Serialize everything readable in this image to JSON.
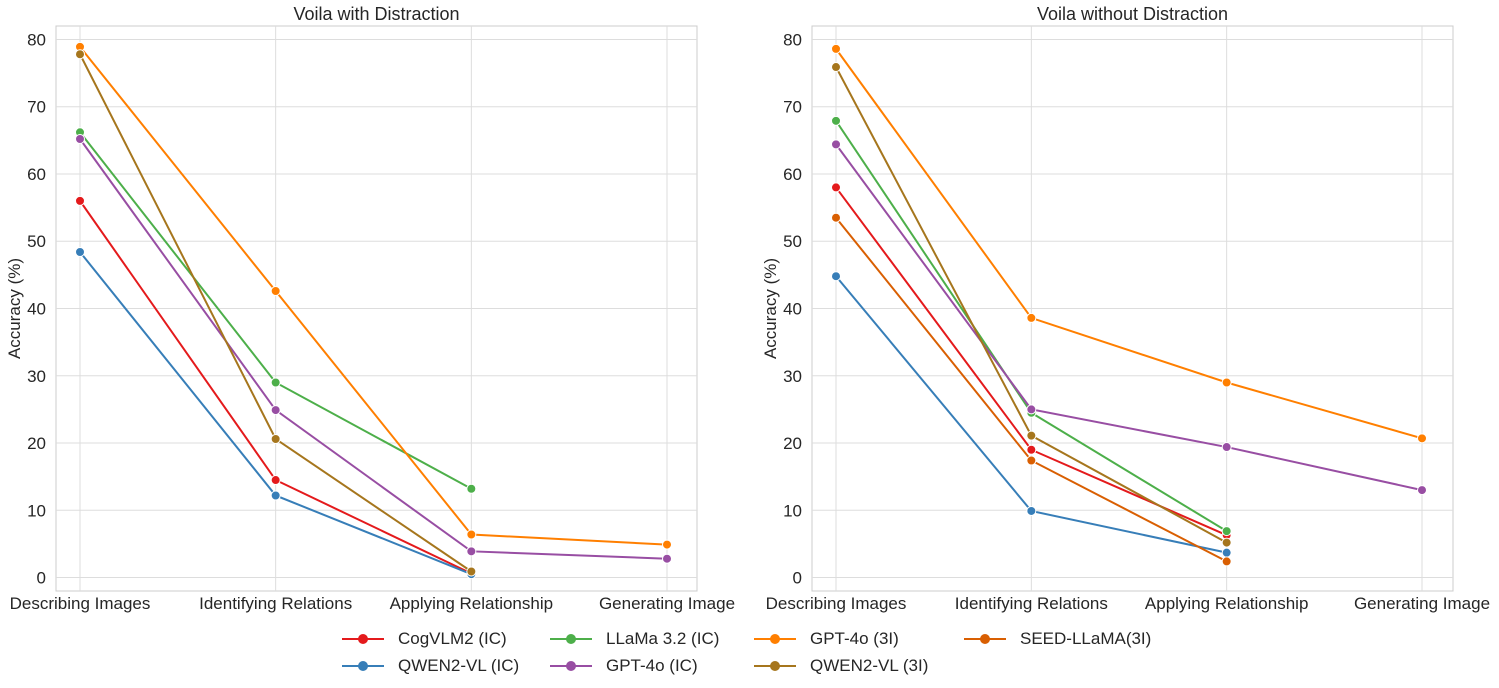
{
  "chart_data": [
    {
      "type": "line",
      "title": "Voila with Distraction",
      "xlabel": "",
      "ylabel": "Accuracy (%)",
      "categories": [
        "Describing Images",
        "Identifying Relations",
        "Applying Relationship",
        "Generating Image"
      ],
      "ylim": [
        -2,
        82
      ],
      "yticks": [
        0,
        10,
        20,
        30,
        40,
        50,
        60,
        70,
        80
      ],
      "grid": true,
      "series": [
        {
          "name": "CogVLM2 (IC)",
          "color": "#e41a1c",
          "values": [
            56.0,
            14.5,
            0.6,
            null
          ]
        },
        {
          "name": "QWEN2-VL (IC)",
          "color": "#377eb8",
          "values": [
            48.4,
            12.2,
            0.5,
            null
          ]
        },
        {
          "name": "LLaMa 3.2 (IC)",
          "color": "#4daf4a",
          "values": [
            66.2,
            29.0,
            13.2,
            null
          ]
        },
        {
          "name": "GPT-4o (IC)",
          "color": "#984ea3",
          "values": [
            65.2,
            24.9,
            3.9,
            2.8
          ]
        },
        {
          "name": "GPT-4o (3I)",
          "color": "#ff7f00",
          "values": [
            78.9,
            42.6,
            6.4,
            4.9
          ]
        },
        {
          "name": "QWEN2-VL (3I)",
          "color": "#a6761d",
          "values": [
            77.8,
            20.6,
            0.9,
            null
          ]
        }
      ]
    },
    {
      "type": "line",
      "title": "Voila without Distraction",
      "xlabel": "",
      "ylabel": "Accuracy (%)",
      "categories": [
        "Describing Images",
        "Identifying Relations",
        "Applying Relationship",
        "Generating Image"
      ],
      "ylim": [
        -2,
        82
      ],
      "yticks": [
        0,
        10,
        20,
        30,
        40,
        50,
        60,
        70,
        80
      ],
      "grid": true,
      "series": [
        {
          "name": "CogVLM2 (IC)",
          "color": "#e41a1c",
          "values": [
            58.0,
            19.0,
            6.3,
            null
          ]
        },
        {
          "name": "QWEN2-VL (IC)",
          "color": "#377eb8",
          "values": [
            44.8,
            9.9,
            3.7,
            null
          ]
        },
        {
          "name": "LLaMa 3.2 (IC)",
          "color": "#4daf4a",
          "values": [
            67.9,
            24.5,
            6.9,
            null
          ]
        },
        {
          "name": "GPT-4o (IC)",
          "color": "#984ea3",
          "values": [
            64.4,
            25.0,
            19.4,
            13.0
          ]
        },
        {
          "name": "GPT-4o (3I)",
          "color": "#ff7f00",
          "values": [
            78.6,
            38.6,
            29.0,
            20.7
          ]
        },
        {
          "name": "QWEN2-VL (3I)",
          "color": "#a6761d",
          "values": [
            75.9,
            21.1,
            5.2,
            null
          ]
        },
        {
          "name": "SEED-LLaMA(3I)",
          "color": "#d95f02",
          "values": [
            53.5,
            17.4,
            2.4,
            null
          ]
        }
      ]
    }
  ],
  "legend": {
    "placement": "bottom-center",
    "entries": [
      {
        "label": "CogVLM2 (IC)",
        "color": "#e41a1c"
      },
      {
        "label": "QWEN2-VL (IC)",
        "color": "#377eb8"
      },
      {
        "label": "LLaMa 3.2 (IC)",
        "color": "#4daf4a"
      },
      {
        "label": "GPT-4o (IC)",
        "color": "#984ea3"
      },
      {
        "label": "GPT-4o (3I)",
        "color": "#ff7f00"
      },
      {
        "label": "QWEN2-VL (3I)",
        "color": "#a6761d"
      },
      {
        "label": "SEED-LLaMA(3I)",
        "color": "#d95f02"
      }
    ]
  }
}
